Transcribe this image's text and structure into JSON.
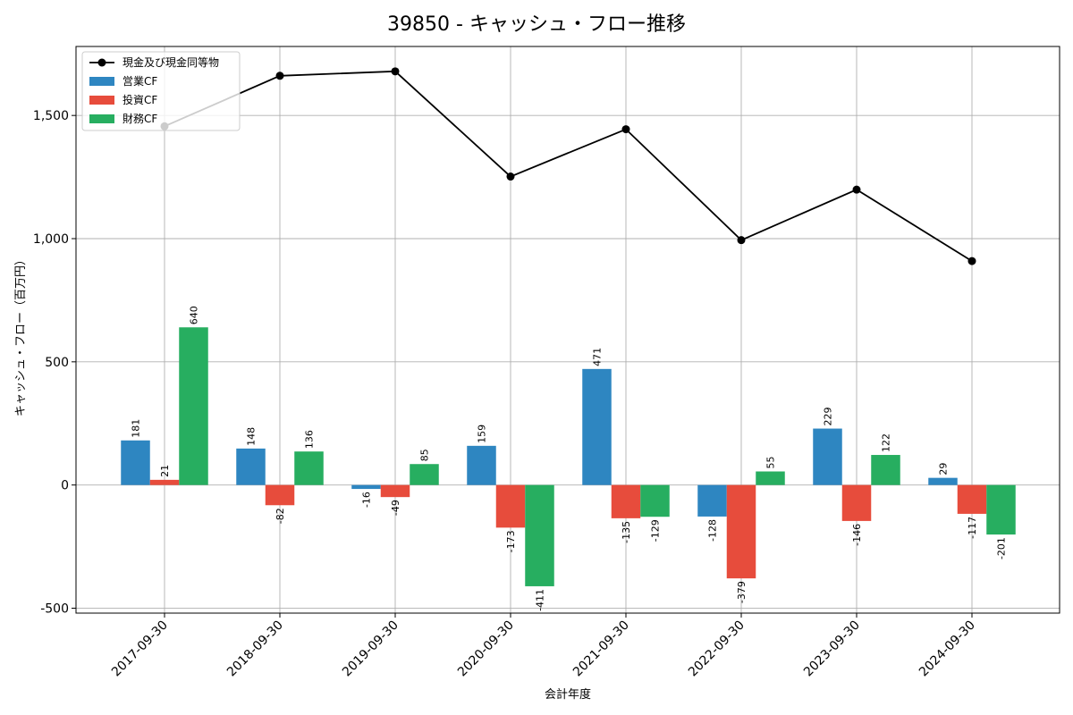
{
  "chart_data": {
    "type": "bar",
    "title": "39850 - キャッシュ・フロー推移",
    "xlabel": "会計年度",
    "ylabel": "キャッシュ・フロー（百万円）",
    "categories": [
      "2017-09-30",
      "2018-09-30",
      "2019-09-30",
      "2020-09-30",
      "2021-09-30",
      "2022-09-30",
      "2023-09-30",
      "2024-09-30"
    ],
    "ylim": [
      -520,
      1780
    ],
    "yticks": [
      -500,
      0,
      500,
      1000,
      1500
    ],
    "ytick_labels": [
      "-500",
      "0",
      "500",
      "1,000",
      "1,500"
    ],
    "grid": true,
    "legend_position": "top-left",
    "series": [
      {
        "name": "営業CF",
        "type": "bar",
        "color": "#2e86c1",
        "values": [
          181,
          148,
          -16,
          159,
          471,
          -128,
          229,
          29
        ],
        "labels": [
          "181",
          "148",
          "-16",
          "159",
          "471",
          "-128",
          "229",
          "29"
        ]
      },
      {
        "name": "投資CF",
        "type": "bar",
        "color": "#e74c3c",
        "values": [
          21,
          -82,
          -49,
          -173,
          -135,
          -379,
          -146,
          -117
        ],
        "labels": [
          "21",
          "-82",
          "-49",
          "-173",
          "-135",
          "-379",
          "-146",
          "-117"
        ]
      },
      {
        "name": "財務CF",
        "type": "bar",
        "color": "#27ae60",
        "values": [
          640,
          136,
          85,
          -411,
          -129,
          55,
          122,
          -201
        ],
        "labels": [
          "640",
          "136",
          "85",
          "-411",
          "-129",
          "55",
          "122",
          "-201"
        ]
      }
    ],
    "line_series": {
      "name": "現金及び現金同等物",
      "type": "line",
      "color": "#000000",
      "values": [
        1456,
        1661,
        1679,
        1252,
        1444,
        994,
        1199,
        909
      ]
    }
  }
}
